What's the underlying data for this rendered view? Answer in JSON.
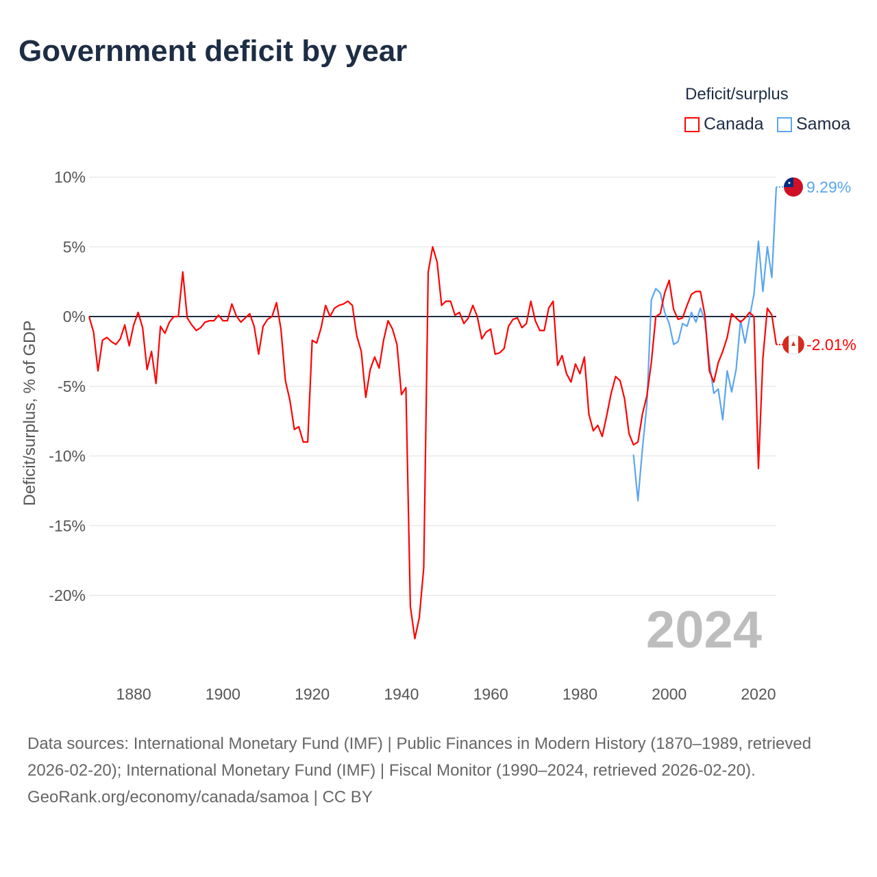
{
  "title": "Government deficit by year",
  "legend": {
    "title": "Deficit/surplus",
    "items": [
      {
        "name": "Canada"
      },
      {
        "name": "Samoa"
      }
    ]
  },
  "footer": {
    "sources": "Data sources: International Monetary Fund (IMF) | Public Finances in Modern History (1870–1989, retrieved 2026-02-20); International Monetary Fund (IMF) | Fiscal Monitor (1990–2024, retrieved 2026-02-20).",
    "attribution": "GeoRank.org/economy/canada/samoa | CC BY"
  },
  "chart_data": {
    "type": "line",
    "title": "Government deficit by year",
    "xlabel": "",
    "ylabel": "Deficit/surplus, % of GDP",
    "xlim": [
      1870,
      2024
    ],
    "ylim": [
      -24.5,
      10.5
    ],
    "yticks": [
      10,
      5,
      0,
      -5,
      -10,
      -15,
      -20
    ],
    "ytick_labels": [
      "10%",
      "5%",
      "0%",
      "-5%",
      "-10%",
      "-15%",
      "-20%"
    ],
    "xticks": [
      1880,
      1900,
      1920,
      1940,
      1960,
      1980,
      2000,
      2020
    ],
    "xtick_labels": [
      "1880",
      "1900",
      "1920",
      "1940",
      "1960",
      "1980",
      "2000",
      "2020"
    ],
    "year_watermark": "2024",
    "grid": true,
    "legend_position": "top-right",
    "series": [
      {
        "name": "Canada",
        "color": "#ff0000",
        "start_year": 1870,
        "end_label": "-2.01%",
        "values": [
          0,
          -1.1,
          -3.9,
          -1.7,
          -1.5,
          -1.8,
          -2.0,
          -1.6,
          -0.6,
          -2.1,
          -0.6,
          0.3,
          -0.8,
          -3.8,
          -2.5,
          -4.8,
          -0.7,
          -1.2,
          -0.4,
          0,
          0,
          3.2,
          -0.1,
          -0.6,
          -1.0,
          -0.8,
          -0.4,
          -0.3,
          -0.3,
          0.1,
          -0.3,
          -0.3,
          0.9,
          0.05,
          -0.4,
          -0.1,
          0.2,
          -0.7,
          -2.7,
          -0.7,
          -0.2,
          0,
          1.0,
          -0.9,
          -4.6,
          -6.0,
          -8.1,
          -7.9,
          -9.0,
          -9.0,
          -1.7,
          -1.9,
          -0.8,
          0.8,
          0,
          0.6,
          0.8,
          0.9,
          1.1,
          0.8,
          -1.4,
          -2.5,
          -5.8,
          -3.8,
          -2.9,
          -3.7,
          -1.7,
          -0.3,
          -0.9,
          -2.0,
          -5.6,
          -5.1,
          -20.8,
          -23.1,
          -21.6,
          -18.0,
          3.2,
          5.0,
          3.9,
          0.8,
          1.1,
          1.1,
          0.1,
          0.3,
          -0.5,
          -0.1,
          0.8,
          0,
          -1.6,
          -1.1,
          -0.9,
          -2.7,
          -2.6,
          -2.3,
          -0.7,
          -0.2,
          -0.1,
          -0.8,
          -0.5,
          1.1,
          -0.3,
          -1.0,
          -1.0,
          0.6,
          1.1,
          -3.5,
          -2.8,
          -4.1,
          -4.7,
          -3.4,
          -4.1,
          -2.9,
          -7.0,
          -8.2,
          -7.8,
          -8.6,
          -7.1,
          -5.5,
          -4.3,
          -4.6,
          -5.9,
          -8.4,
          -9.2,
          -9.0,
          -7.0,
          -5.7,
          -3.3,
          0,
          0.2,
          1.7,
          2.6,
          0.5,
          -0.2,
          -0.1,
          0.8,
          1.6,
          1.8,
          1.8,
          0.1,
          -3.9,
          -4.7,
          -3.3,
          -2.5,
          -1.5,
          0.2,
          -0.1,
          -0.4,
          -0.1,
          0.3,
          0,
          -10.9,
          -3.0,
          0.6,
          0.1,
          -2.01
        ]
      },
      {
        "name": "Samoa",
        "color": "#5aa5f0",
        "start_year": 1992,
        "end_label": "9.29%",
        "values": [
          -9.9,
          -13.2,
          -9.5,
          -6.3,
          1.2,
          2.0,
          1.7,
          0.3,
          -0.5,
          -2.0,
          -1.8,
          -0.5,
          -0.7,
          0.3,
          -0.4,
          0.6,
          -0.3,
          -3.3,
          -5.5,
          -5.2,
          -7.4,
          -3.9,
          -5.4,
          -3.8,
          -0.3,
          -1.9,
          -0.1,
          1.6,
          5.4,
          1.8,
          5.0,
          2.8,
          9.29
        ]
      }
    ]
  }
}
